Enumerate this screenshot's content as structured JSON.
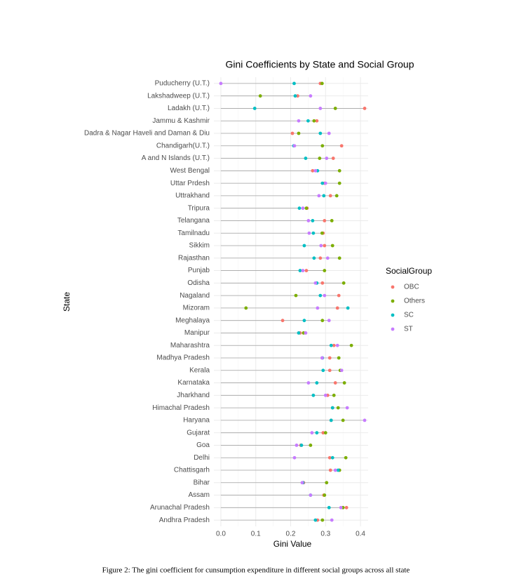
{
  "chart_data": {
    "type": "dotplot",
    "title": "Gini Coefficients by State and Social Group",
    "xlabel": "Gini Value",
    "ylabel": "State",
    "legend_title": "SocialGroup",
    "legend_position": "right",
    "categories": [
      "Puducherry (U.T.)",
      "Lakshadweep (U.T.)",
      "Ladakh (U.T.)",
      "Jammu & Kashmir",
      "Dadra & Nagar Haveli and Daman & Diu",
      "Chandigarh(U.T.)",
      "A and N Islands (U.T.)",
      "West Bengal",
      "Uttar Prdesh",
      "Uttrakhand",
      "Tripura",
      "Telangana",
      "Tamilnadu",
      "Sikkim",
      "Rajasthan",
      "Punjab",
      "Odisha",
      "Nagaland",
      "Mizoram",
      "Meghalaya",
      "Manipur",
      "Maharashtra",
      "Madhya Pradesh",
      "Kerala",
      "Karnataka",
      "Jharkhand",
      "Himachal Pradesh",
      "Haryana",
      "Gujarat",
      "Goa",
      "Delhi",
      "Chattisgarh",
      "Bihar",
      "Assam",
      "Arunachal Pradesh",
      "Andhra Pradesh"
    ],
    "series": [
      {
        "name": "OBC",
        "color": "#F8766D",
        "values": [
          0.285,
          0.22,
          0.412,
          0.275,
          0.205,
          0.346,
          0.322,
          0.263,
          0.297,
          0.314,
          0.247,
          0.297,
          0.293,
          0.297,
          0.285,
          0.245,
          0.291,
          0.338,
          0.334,
          0.177,
          0.227,
          0.324,
          0.312,
          0.312,
          0.328,
          0.306,
          0.32,
          0.316,
          0.293,
          0.229,
          0.312,
          0.314,
          0.237,
          0.295,
          0.36,
          0.277
        ]
      },
      {
        "name": "Others",
        "color": "#7CAE00",
        "values": [
          0.29,
          0.113,
          0.328,
          0.267,
          0.223,
          0.291,
          0.283,
          0.34,
          0.34,
          0.332,
          0.245,
          0.318,
          0.29,
          0.32,
          0.34,
          0.297,
          0.352,
          0.215,
          0.072,
          0.291,
          0.237,
          0.374,
          0.338,
          0.342,
          0.354,
          0.324,
          0.336,
          0.35,
          0.3,
          0.257,
          0.358,
          0.34,
          0.303,
          0.297,
          0.35,
          0.291
        ]
      },
      {
        "name": "SC",
        "color": "#00BFC4",
        "values": [
          0.21,
          0.213,
          0.097,
          0.25,
          0.285,
          0.209,
          0.243,
          0.277,
          0.291,
          0.295,
          0.225,
          0.263,
          0.265,
          0.239,
          0.267,
          0.227,
          0.275,
          0.285,
          0.364,
          0.239,
          0.223,
          0.316,
          0.291,
          0.293,
          0.275,
          0.265,
          0.32,
          0.316,
          0.275,
          0.231,
          0.32,
          0.336,
          0.235,
          0.257,
          0.31,
          0.271
        ]
      },
      {
        "name": "ST",
        "color": "#C77CFF",
        "values": [
          0.0,
          0.257,
          0.285,
          0.223,
          0.31,
          0.211,
          0.303,
          0.271,
          0.3,
          0.281,
          0.235,
          0.251,
          0.253,
          0.287,
          0.306,
          0.235,
          0.271,
          0.297,
          0.277,
          0.31,
          0.243,
          0.334,
          0.29,
          0.346,
          0.251,
          0.3,
          0.362,
          0.412,
          0.261,
          0.217,
          0.211,
          0.328,
          0.233,
          0.257,
          0.344,
          0.318
        ]
      }
    ],
    "xlim": [
      -0.02,
      0.422
    ],
    "xticks": [
      {
        "value": 0,
        "label": "0.0"
      },
      0.1,
      0.2,
      0.3,
      0.4
    ],
    "grid": true
  },
  "caption": "Figure 2: The gini coefficient for cunsumption expenditure in different social groups across all state"
}
